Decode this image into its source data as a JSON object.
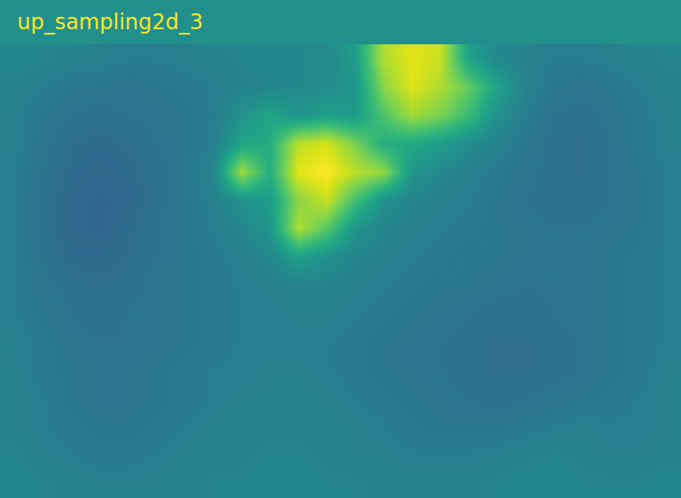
{
  "chart_data": {
    "type": "heatmap",
    "title": "up_sampling2d_3",
    "color": "Viridis",
    "tick_labels": false,
    "zlim": [
      0,
      1
    ],
    "z": [
      [
        0.46,
        0.45,
        0.44,
        0.43,
        0.42,
        0.42,
        0.43,
        0.44,
        0.45,
        0.46,
        0.46,
        0.47,
        0.55,
        0.88,
        0.96,
        0.92,
        0.58,
        0.46,
        0.44,
        0.42,
        0.42,
        0.43,
        0.44,
        0.45
      ],
      [
        0.44,
        0.42,
        0.4,
        0.4,
        0.39,
        0.4,
        0.41,
        0.42,
        0.44,
        0.45,
        0.46,
        0.48,
        0.52,
        0.82,
        0.95,
        0.88,
        0.76,
        0.58,
        0.44,
        0.4,
        0.39,
        0.4,
        0.42,
        0.44
      ],
      [
        0.43,
        0.4,
        0.38,
        0.37,
        0.38,
        0.39,
        0.4,
        0.42,
        0.5,
        0.58,
        0.52,
        0.56,
        0.54,
        0.72,
        0.86,
        0.8,
        0.68,
        0.5,
        0.42,
        0.38,
        0.37,
        0.39,
        0.41,
        0.43
      ],
      [
        0.43,
        0.39,
        0.36,
        0.35,
        0.36,
        0.38,
        0.4,
        0.42,
        0.58,
        0.62,
        0.9,
        0.94,
        0.8,
        0.62,
        0.6,
        0.55,
        0.48,
        0.44,
        0.4,
        0.37,
        0.36,
        0.38,
        0.41,
        0.43
      ],
      [
        0.42,
        0.38,
        0.35,
        0.34,
        0.35,
        0.37,
        0.4,
        0.45,
        0.86,
        0.62,
        0.96,
        1.0,
        0.9,
        0.84,
        0.52,
        0.46,
        0.43,
        0.41,
        0.39,
        0.37,
        0.36,
        0.38,
        0.4,
        0.42
      ],
      [
        0.42,
        0.37,
        0.34,
        0.33,
        0.34,
        0.37,
        0.4,
        0.43,
        0.5,
        0.55,
        0.82,
        0.92,
        0.7,
        0.5,
        0.45,
        0.43,
        0.42,
        0.4,
        0.38,
        0.37,
        0.37,
        0.38,
        0.4,
        0.42
      ],
      [
        0.42,
        0.37,
        0.34,
        0.33,
        0.35,
        0.38,
        0.4,
        0.42,
        0.45,
        0.52,
        0.88,
        0.74,
        0.52,
        0.45,
        0.43,
        0.42,
        0.41,
        0.4,
        0.39,
        0.38,
        0.38,
        0.39,
        0.4,
        0.42
      ],
      [
        0.42,
        0.38,
        0.35,
        0.35,
        0.36,
        0.38,
        0.4,
        0.41,
        0.43,
        0.46,
        0.56,
        0.5,
        0.45,
        0.43,
        0.42,
        0.41,
        0.4,
        0.4,
        0.39,
        0.39,
        0.39,
        0.4,
        0.41,
        0.42
      ],
      [
        0.42,
        0.39,
        0.37,
        0.36,
        0.37,
        0.39,
        0.4,
        0.41,
        0.42,
        0.43,
        0.44,
        0.44,
        0.43,
        0.42,
        0.41,
        0.4,
        0.4,
        0.39,
        0.38,
        0.38,
        0.39,
        0.4,
        0.41,
        0.42
      ],
      [
        0.42,
        0.4,
        0.38,
        0.37,
        0.38,
        0.39,
        0.4,
        0.41,
        0.42,
        0.42,
        0.43,
        0.43,
        0.42,
        0.41,
        0.4,
        0.39,
        0.38,
        0.37,
        0.37,
        0.38,
        0.39,
        0.4,
        0.41,
        0.42
      ],
      [
        0.43,
        0.41,
        0.39,
        0.38,
        0.38,
        0.39,
        0.4,
        0.41,
        0.42,
        0.42,
        0.42,
        0.42,
        0.41,
        0.4,
        0.39,
        0.38,
        0.37,
        0.36,
        0.36,
        0.37,
        0.38,
        0.4,
        0.41,
        0.42
      ],
      [
        0.43,
        0.41,
        0.4,
        0.39,
        0.39,
        0.4,
        0.41,
        0.42,
        0.42,
        0.43,
        0.43,
        0.42,
        0.41,
        0.4,
        0.39,
        0.38,
        0.37,
        0.36,
        0.36,
        0.37,
        0.38,
        0.4,
        0.41,
        0.43
      ],
      [
        0.44,
        0.42,
        0.4,
        0.39,
        0.39,
        0.4,
        0.41,
        0.42,
        0.43,
        0.43,
        0.44,
        0.43,
        0.42,
        0.41,
        0.4,
        0.39,
        0.38,
        0.37,
        0.38,
        0.39,
        0.4,
        0.41,
        0.42,
        0.43
      ],
      [
        0.44,
        0.42,
        0.41,
        0.4,
        0.4,
        0.41,
        0.42,
        0.43,
        0.44,
        0.44,
        0.44,
        0.44,
        0.43,
        0.42,
        0.41,
        0.4,
        0.4,
        0.4,
        0.41,
        0.42,
        0.43,
        0.42,
        0.42,
        0.43
      ],
      [
        0.45,
        0.43,
        0.42,
        0.41,
        0.41,
        0.42,
        0.43,
        0.44,
        0.44,
        0.45,
        0.45,
        0.44,
        0.43,
        0.43,
        0.42,
        0.42,
        0.42,
        0.43,
        0.44,
        0.45,
        0.44,
        0.43,
        0.43,
        0.44
      ],
      [
        0.46,
        0.45,
        0.44,
        0.43,
        0.43,
        0.43,
        0.44,
        0.45,
        0.45,
        0.46,
        0.46,
        0.45,
        0.45,
        0.44,
        0.44,
        0.44,
        0.44,
        0.45,
        0.46,
        0.46,
        0.45,
        0.45,
        0.45,
        0.46
      ]
    ]
  }
}
